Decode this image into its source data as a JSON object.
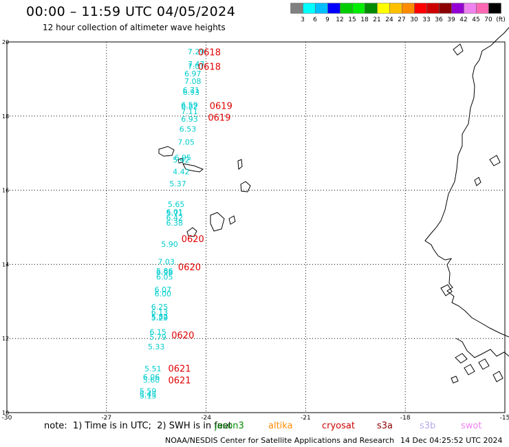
{
  "title": "00:00 – 11:59 UTC 04/05/2024",
  "subtitle": "12 hour collection of altimeter wave heights",
  "scale": {
    "labels": [
      "3",
      "6",
      "9",
      "12",
      "15",
      "18",
      "21",
      "24",
      "27",
      "30",
      "33",
      "36",
      "39",
      "42",
      "45",
      "70",
      "(ft)"
    ],
    "colors": [
      "#808080",
      "#00ffff",
      "#00bfff",
      "#0000ff",
      "#00cd00",
      "#00ee00",
      "#008b00",
      "#ffff00",
      "#ffc000",
      "#ff8c00",
      "#ff0000",
      "#cd0000",
      "#8b0000",
      "#9400d3",
      "#ee82ee",
      "#ff69b4",
      "#000000"
    ]
  },
  "axes": {
    "x_ticks": [
      "-30",
      "-27",
      "-24",
      "-21",
      "-18",
      "-15"
    ],
    "y_ticks": [
      "20",
      "18",
      "16",
      "14",
      "12",
      "10"
    ]
  },
  "wave_labels": [
    {
      "text": "7.29",
      "lon": -24.3,
      "lat": 19.67
    },
    {
      "text": "7.47",
      "lon": -24.3,
      "lat": 19.33
    },
    {
      "text": "7.07",
      "lon": -24.3,
      "lat": 19.27
    },
    {
      "text": "6.97",
      "lon": -24.4,
      "lat": 19.07
    },
    {
      "text": "7.08",
      "lon": -24.4,
      "lat": 18.87
    },
    {
      "text": "6.71",
      "lon": -24.45,
      "lat": 18.63
    },
    {
      "text": "6.93",
      "lon": -24.45,
      "lat": 18.57
    },
    {
      "text": "6.59",
      "lon": -24.5,
      "lat": 18.23
    },
    {
      "text": "6.82",
      "lon": -24.5,
      "lat": 18.19
    },
    {
      "text": "7.11",
      "lon": -24.5,
      "lat": 18.05
    },
    {
      "text": "6.93",
      "lon": -24.5,
      "lat": 17.85
    },
    {
      "text": "6.53",
      "lon": -24.55,
      "lat": 17.58
    },
    {
      "text": "7.05",
      "lon": -24.6,
      "lat": 17.23
    },
    {
      "text": "6.95",
      "lon": -24.7,
      "lat": 16.81
    },
    {
      "text": "5.42",
      "lon": -24.75,
      "lat": 16.74
    },
    {
      "text": "4.42",
      "lon": -24.75,
      "lat": 16.43
    },
    {
      "text": "5.37",
      "lon": -24.85,
      "lat": 16.1
    },
    {
      "text": "5.65",
      "lon": -24.9,
      "lat": 15.55
    },
    {
      "text": "6.01",
      "lon": -24.95,
      "lat": 15.34
    },
    {
      "text": "5.71",
      "lon": -24.95,
      "lat": 15.31
    },
    {
      "text": "6.42",
      "lon": -24.95,
      "lat": 15.19
    },
    {
      "text": "6.38",
      "lon": -24.95,
      "lat": 15.05
    },
    {
      "text": "5.90",
      "lon": -25.1,
      "lat": 14.47
    },
    {
      "text": "7.03",
      "lon": -25.2,
      "lat": 14.0
    },
    {
      "text": "5.86",
      "lon": -25.25,
      "lat": 13.75
    },
    {
      "text": "6.98",
      "lon": -25.25,
      "lat": 13.71
    },
    {
      "text": "6.05",
      "lon": -25.25,
      "lat": 13.59
    },
    {
      "text": "6.07",
      "lon": -25.3,
      "lat": 13.25
    },
    {
      "text": "6.00",
      "lon": -25.3,
      "lat": 13.14
    },
    {
      "text": "6.25",
      "lon": -25.4,
      "lat": 12.78
    },
    {
      "text": "6.13",
      "lon": -25.4,
      "lat": 12.63
    },
    {
      "text": "5.82",
      "lon": -25.4,
      "lat": 12.51
    },
    {
      "text": "5.29",
      "lon": -25.4,
      "lat": 12.49
    },
    {
      "text": "6.15",
      "lon": -25.45,
      "lat": 12.11
    },
    {
      "text": "5.79",
      "lon": -25.45,
      "lat": 11.97
    },
    {
      "text": "5.33",
      "lon": -25.5,
      "lat": 11.71
    },
    {
      "text": "5.51",
      "lon": -25.6,
      "lat": 11.11
    },
    {
      "text": "6.06",
      "lon": -25.65,
      "lat": 10.89
    },
    {
      "text": "5.60",
      "lon": -25.65,
      "lat": 10.81
    },
    {
      "text": "5.59",
      "lon": -25.75,
      "lat": 10.51
    },
    {
      "text": "5.45",
      "lon": -25.75,
      "lat": 10.43
    },
    {
      "text": "5.15",
      "lon": -25.75,
      "lat": 10.38
    }
  ],
  "time_labels": [
    {
      "text": "0618",
      "lon": -23.9,
      "lat": 19.64
    },
    {
      "text": "0618",
      "lon": -23.9,
      "lat": 19.25
    },
    {
      "text": "0619",
      "lon": -23.55,
      "lat": 18.19
    },
    {
      "text": "0619",
      "lon": -23.6,
      "lat": 17.88
    },
    {
      "text": "0620",
      "lon": -24.4,
      "lat": 14.6
    },
    {
      "text": "0620",
      "lon": -24.5,
      "lat": 13.84
    },
    {
      "text": "0620",
      "lon": -24.7,
      "lat": 12.0
    },
    {
      "text": "0621",
      "lon": -24.8,
      "lat": 11.1
    },
    {
      "text": "0621",
      "lon": -24.8,
      "lat": 10.79
    }
  ],
  "note": "note:  1) Time is in UTC;  2) SWH is in feet",
  "satellites": [
    {
      "name": "jason3",
      "color": "#008b00"
    },
    {
      "name": "altika",
      "color": "#ff8c00"
    },
    {
      "name": "cryosat",
      "color": "#cd0000"
    },
    {
      "name": "s3a",
      "color": "#8b0000"
    },
    {
      "name": "s3b",
      "color": "#b8a8e8"
    },
    {
      "name": "swot",
      "color": "#ee82ee"
    }
  ],
  "credit": "NOAA/NESDIS Center for Satellite Applications and Research",
  "stamp": "14 Dec 04:25:52 UTC 2024",
  "colors": {
    "wave": "#00cdcd",
    "time": "#e00000"
  }
}
